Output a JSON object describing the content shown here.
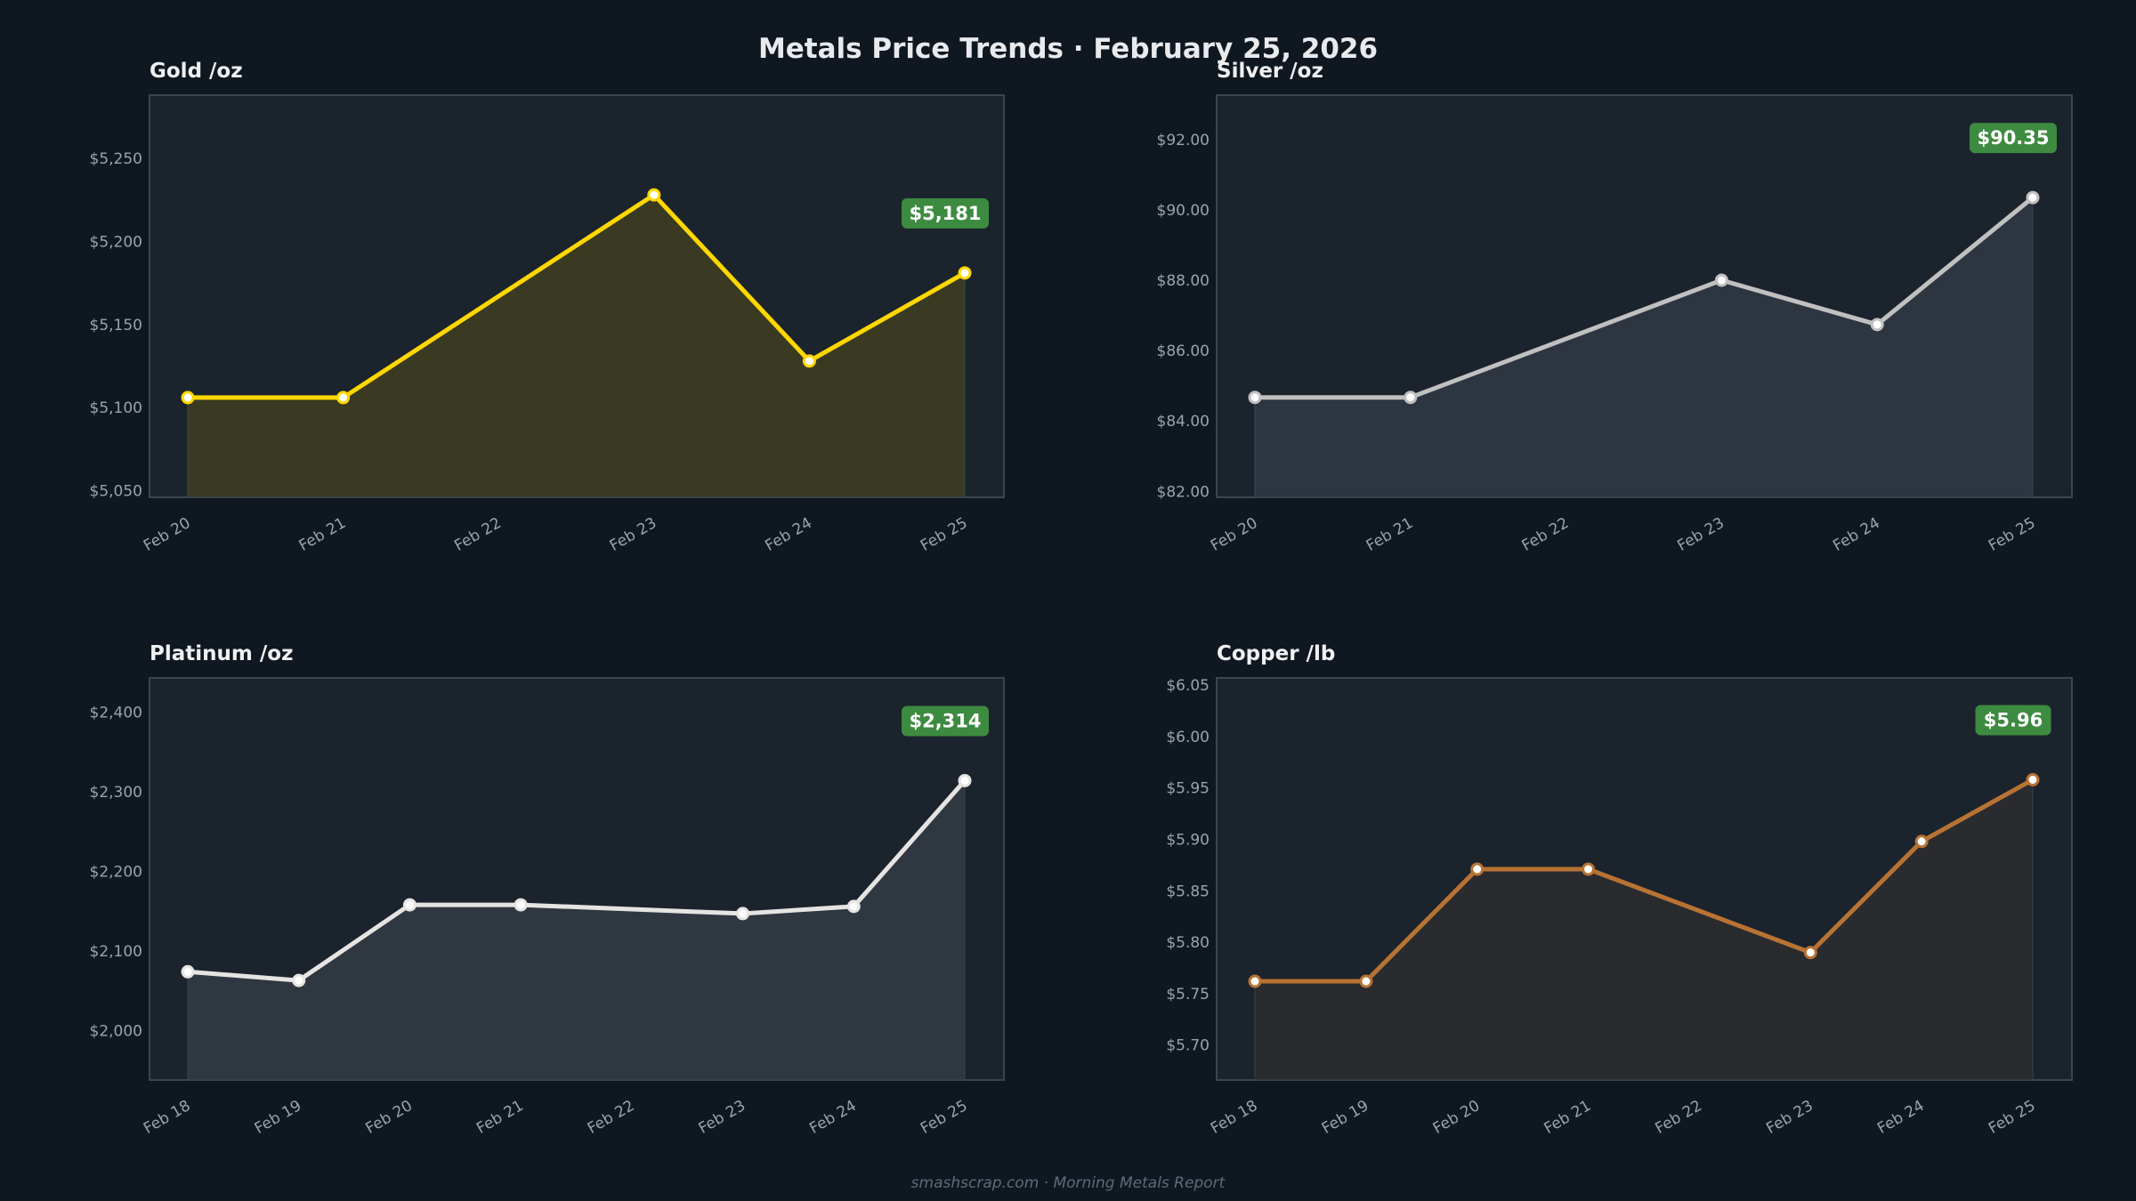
{
  "header": {
    "title": "Metals Price Trends  ·  February 25, 2026"
  },
  "footer": {
    "text": "smashscrap.com  ·  Morning Metals Report"
  },
  "colors": {
    "background": "#0f1720",
    "plot_background": "#1b232d",
    "badge": "#3d8b40"
  },
  "chart_data": [
    {
      "type": "area",
      "title": "Gold  /oz",
      "color": "#ffd700",
      "fill": "#3a3a22",
      "x_ticks": [
        "Feb 20",
        "Feb 21",
        "Feb 22",
        "Feb 23",
        "Feb 24",
        "Feb 25"
      ],
      "x": [
        "Feb 20",
        "Feb 21",
        "Feb 23",
        "Feb 24",
        "Feb 25"
      ],
      "values": [
        5106,
        5106,
        5228,
        5128,
        5181
      ],
      "y_ticks": [
        5050,
        5100,
        5150,
        5200,
        5250
      ],
      "y_tick_labels": [
        "$5,050",
        "$5,100",
        "$5,150",
        "$5,200",
        "$5,250"
      ],
      "ylim": [
        5046,
        5288
      ],
      "last_label": "$5,181",
      "grid": false
    },
    {
      "type": "area",
      "title": "Silver  /oz",
      "color": "#c0c0c0",
      "fill": "#2c3540",
      "x_ticks": [
        "Feb 20",
        "Feb 21",
        "Feb 22",
        "Feb 23",
        "Feb 24",
        "Feb 25"
      ],
      "x": [
        "Feb 20",
        "Feb 21",
        "Feb 23",
        "Feb 24",
        "Feb 25"
      ],
      "values": [
        84.67,
        84.67,
        88.0,
        86.74,
        90.35
      ],
      "y_ticks": [
        82,
        84,
        86,
        88,
        90,
        92
      ],
      "y_tick_labels": [
        "$82.00",
        "$84.00",
        "$86.00",
        "$88.00",
        "$90.00",
        "$92.00"
      ],
      "ylim": [
        81.83,
        93.26
      ],
      "last_label": "$90.35",
      "grid": false
    },
    {
      "type": "area",
      "title": "Platinum  /oz",
      "color": "#e5e4e2",
      "fill": "#2f3740",
      "x_ticks": [
        "Feb 18",
        "Feb 19",
        "Feb 20",
        "Feb 21",
        "Feb 22",
        "Feb 23",
        "Feb 24",
        "Feb 25"
      ],
      "x": [
        "Feb 18",
        "Feb 19",
        "Feb 20",
        "Feb 21",
        "Feb 23",
        "Feb 24",
        "Feb 25"
      ],
      "values": [
        2074,
        2063,
        2158,
        2158,
        2147,
        2156,
        2314
      ],
      "y_ticks": [
        2000,
        2100,
        2200,
        2300,
        2400
      ],
      "y_tick_labels": [
        "$2,000",
        "$2,100",
        "$2,200",
        "$2,300",
        "$2,400"
      ],
      "ylim": [
        1938,
        2443
      ],
      "last_label": "$2,314",
      "grid": false
    },
    {
      "type": "area",
      "title": "Copper  /lb",
      "color": "#b87333",
      "fill": "#2a2b2f",
      "x_ticks": [
        "Feb 18",
        "Feb 19",
        "Feb 20",
        "Feb 21",
        "Feb 22",
        "Feb 23",
        "Feb 24",
        "Feb 25"
      ],
      "x": [
        "Feb 18",
        "Feb 19",
        "Feb 20",
        "Feb 21",
        "Feb 23",
        "Feb 24",
        "Feb 25"
      ],
      "values": [
        5.762,
        5.762,
        5.871,
        5.871,
        5.79,
        5.898,
        5.958
      ],
      "y_ticks": [
        5.7,
        5.75,
        5.8,
        5.85,
        5.9,
        5.95,
        6.0,
        6.05
      ],
      "y_tick_labels": [
        "$5.70",
        "$5.75",
        "$5.80",
        "$5.85",
        "$5.90",
        "$5.95",
        "$6.00",
        "$6.05"
      ],
      "ylim": [
        5.666,
        6.057
      ],
      "last_label": "$5.96",
      "grid": false
    }
  ]
}
